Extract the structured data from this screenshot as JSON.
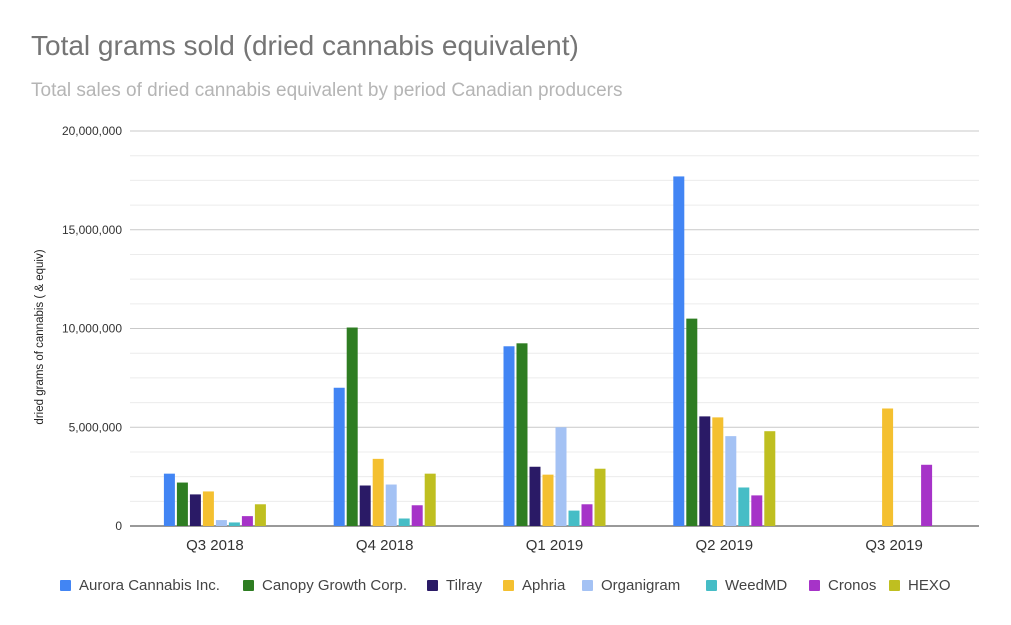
{
  "chart_data": {
    "type": "bar",
    "title": "Total grams sold (dried cannabis equivalent)",
    "subtitle": "Total sales of dried cannabis equivalent by period Canadian producers",
    "ylabel": "dried grams of cannabis ( & equiv)",
    "xlabel": "",
    "ylim": [
      0,
      20000000
    ],
    "yticks": [
      "0",
      "5,000,000",
      "10,000,000",
      "15,000,000",
      "20,000,000"
    ],
    "ytick_values": [
      0,
      5000000,
      10000000,
      15000000,
      20000000
    ],
    "grid": true,
    "legend_position": "bottom",
    "categories": [
      "Q3 2018",
      "Q4 2018",
      "Q1 2019",
      "Q2 2019",
      "Q3 2019"
    ],
    "series": [
      {
        "name": "Aurora Cannabis Inc.",
        "color": "#4285f4",
        "values": [
          2650000,
          7000000,
          9100000,
          17700000,
          null
        ]
      },
      {
        "name": "Canopy Growth Corp.",
        "color": "#2e7d22",
        "values": [
          2200000,
          10050000,
          9250000,
          10500000,
          null
        ]
      },
      {
        "name": "Tilray",
        "color": "#2a1a66",
        "values": [
          1600000,
          2050000,
          3000000,
          5550000,
          null
        ]
      },
      {
        "name": "Aphria",
        "color": "#f4c030",
        "values": [
          1750000,
          3400000,
          2600000,
          5500000,
          5950000
        ]
      },
      {
        "name": "Organigram",
        "color": "#a4c2f4",
        "values": [
          300000,
          2100000,
          5000000,
          4550000,
          null
        ]
      },
      {
        "name": "WeedMD",
        "color": "#46bdc6",
        "values": [
          180000,
          380000,
          780000,
          1950000,
          null
        ]
      },
      {
        "name": "Cronos",
        "color": "#a633c8",
        "values": [
          500000,
          1050000,
          1100000,
          1550000,
          3100000
        ]
      },
      {
        "name": "HEXO",
        "color": "#bfbf20",
        "values": [
          1100000,
          2650000,
          2900000,
          4800000,
          null
        ]
      }
    ]
  }
}
